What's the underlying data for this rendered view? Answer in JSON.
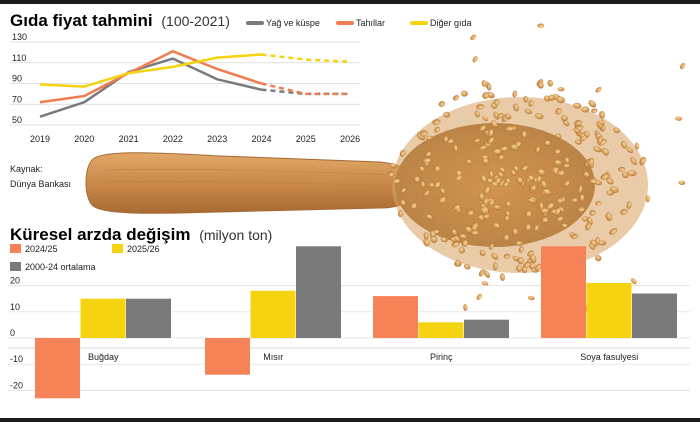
{
  "chart_data": [
    {
      "type": "line",
      "title": "Gıda fiyat tahmini",
      "subtitle": "(100-2021)",
      "x": [
        "2019",
        "2020",
        "2021",
        "2022",
        "2023",
        "2024",
        "2025",
        "2026"
      ],
      "ylim": [
        50,
        130
      ],
      "yticks": [
        "130",
        "110",
        "90",
        "70",
        "50"
      ],
      "yticks_values": [
        130,
        110,
        90,
        70,
        50
      ],
      "forecast_from": "2024",
      "series": [
        {
          "name": "Yağ ve küspe",
          "color": "#7a7a7a",
          "values": [
            58,
            72,
            101,
            114,
            94,
            84,
            80,
            80
          ]
        },
        {
          "name": "Tahıllar",
          "color": "#f07d52",
          "values": [
            72,
            78,
            100,
            121,
            104,
            90,
            80,
            80
          ]
        },
        {
          "name": "Diğer gıda",
          "color": "#f5d40f",
          "values": [
            89,
            87,
            100,
            106,
            115,
            118,
            113,
            111
          ]
        }
      ],
      "source_label": "Kaynak:",
      "source": "Dünya Bankası"
    },
    {
      "type": "bar",
      "title": "Küresel arzda değişim",
      "subtitle": "(milyon ton)",
      "categories": [
        "Buğday",
        "Mısır",
        "Pirinç",
        "Soya fasulyesi"
      ],
      "ylim": [
        -25,
        30
      ],
      "yticks": [
        "20",
        "10",
        "0",
        "-10",
        "-20"
      ],
      "yticks_values": [
        20,
        10,
        0,
        -10,
        -20
      ],
      "series": [
        {
          "name": "2024/25",
          "color": "#f58357",
          "values": [
            -23,
            -14,
            16,
            35
          ]
        },
        {
          "name": "2025/26",
          "color": "#f5d40f",
          "values": [
            15,
            18,
            6,
            21
          ]
        },
        {
          "name": "2000-24 ortalama",
          "color": "#7a7a7a",
          "values": [
            15,
            35,
            7,
            17
          ]
        }
      ]
    }
  ]
}
